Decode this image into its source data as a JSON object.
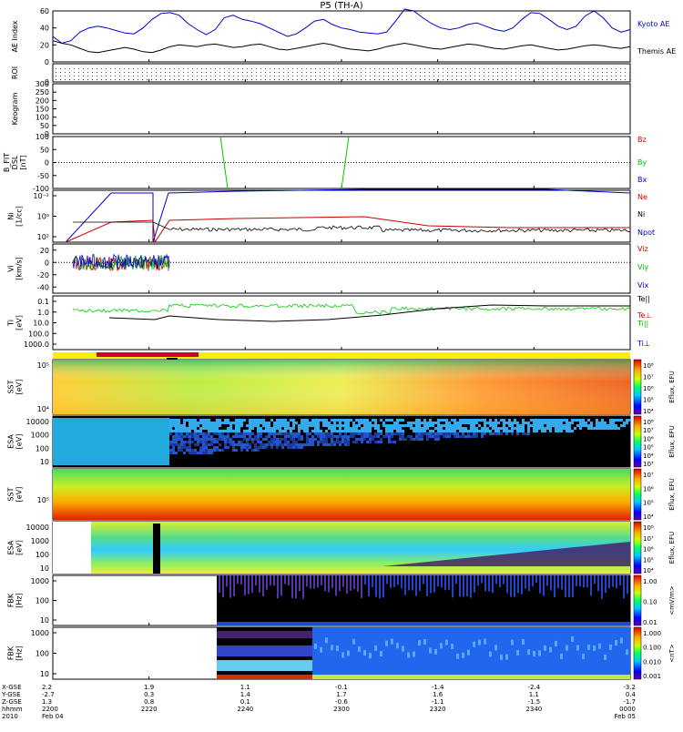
{
  "title": "P5 (TH-A)",
  "chart_data": [
    {
      "type": "line",
      "ylabel": "AE Index",
      "ylim": [
        0,
        60
      ],
      "yticks": [
        "0",
        "20",
        "40",
        "60"
      ],
      "series": [
        {
          "name": "Kyoto AE",
          "color": "#0000cc",
          "values": [
            30,
            22,
            25,
            35,
            40,
            42,
            40,
            37,
            34,
            33,
            40,
            50,
            57,
            58,
            55,
            45,
            38,
            32,
            38,
            52,
            55,
            50,
            48,
            45,
            40,
            35,
            30,
            33,
            40,
            48,
            50,
            44,
            40,
            38,
            35,
            34,
            33,
            35,
            48,
            62,
            60,
            52,
            45,
            40,
            38,
            40,
            44,
            46,
            42,
            38,
            36,
            40,
            50,
            58,
            57,
            50,
            42,
            38,
            42,
            54,
            60,
            52,
            40,
            35,
            38
          ]
        },
        {
          "name": "Themis AE",
          "color": "#000000",
          "values": [
            25,
            22,
            20,
            16,
            12,
            11,
            13,
            15,
            17,
            15,
            12,
            11,
            14,
            18,
            20,
            19,
            18,
            20,
            21,
            19,
            17,
            18,
            20,
            21,
            18,
            15,
            14,
            16,
            18,
            20,
            22,
            20,
            17,
            15,
            14,
            13,
            15,
            18,
            20,
            22,
            20,
            18,
            16,
            15,
            17,
            19,
            21,
            20,
            18,
            16,
            15,
            17,
            19,
            20,
            18,
            16,
            14,
            15,
            17,
            19,
            20,
            19,
            17,
            16,
            18
          ]
        }
      ]
    },
    {
      "type": "table",
      "ylabel": "ROI",
      "ylim": [
        0,
        10
      ],
      "yticks": [
        "0"
      ]
    },
    {
      "type": "line",
      "ylabel": "Keogram",
      "ylim": [
        0,
        300
      ],
      "yticks": [
        "0",
        "50",
        "100",
        "150",
        "200",
        "250",
        "300"
      ]
    },
    {
      "type": "line",
      "ylabel": "B_FIT\n[nT]",
      "ylabel_lines": [
        "B_FIT",
        "DSL",
        "[nT]"
      ],
      "ylim": [
        -100,
        100
      ],
      "yticks": [
        "-100",
        "-50",
        "0",
        "50",
        "100"
      ],
      "series": [
        {
          "name": "Bz",
          "color": "#cc0000",
          "values": []
        },
        {
          "name": "By",
          "color": "#00bb00",
          "values": []
        },
        {
          "name": "Bx",
          "color": "#0000cc",
          "values": []
        }
      ]
    },
    {
      "type": "line",
      "ylabel_lines": [
        "Ni",
        "[1/cc]"
      ],
      "scale": "log",
      "yticks": [
        "10⁻²",
        "10⁰",
        "10²"
      ],
      "series": [
        {
          "name": "Ne",
          "color": "#cc0000"
        },
        {
          "name": "Ni",
          "color": "#000000"
        },
        {
          "name": "Npot",
          "color": "#0000cc"
        }
      ]
    },
    {
      "type": "line",
      "ylabel_lines": [
        "Vi",
        "[km/s]"
      ],
      "ylim": [
        -50,
        30
      ],
      "yticks": [
        "-40",
        "-20",
        "0",
        "20"
      ],
      "series": [
        {
          "name": "Viz",
          "color": "#cc0000"
        },
        {
          "name": "Viy",
          "color": "#00bb00"
        },
        {
          "name": "Vix",
          "color": "#0000cc"
        }
      ]
    },
    {
      "type": "line",
      "ylabel_lines": [
        "Ti",
        "[eV]"
      ],
      "scale": "log",
      "yticks": [
        "0.1",
        "1.0",
        "10.0",
        "100.0",
        "1000.0"
      ],
      "series": [
        {
          "name": "Te||",
          "color": "#000000"
        },
        {
          "name": "Te⊥",
          "color": "#cc0000"
        },
        {
          "name": "Ti||",
          "color": "#00bb00"
        },
        {
          "name": "Ti⊥",
          "color": "#0000cc"
        }
      ]
    },
    {
      "type": "heatmap",
      "ylabel_lines": [
        "SST",
        "[eV]"
      ],
      "yticks": [
        "10⁵",
        "10⁴"
      ],
      "colorbar": [
        "10⁸",
        "10⁷",
        "10⁶",
        "10⁵",
        "10⁴"
      ],
      "cblabel": "Eflux, EFU"
    },
    {
      "type": "heatmap",
      "ylabel_lines": [
        "ESA",
        "[eV]"
      ],
      "yticks": [
        "10000",
        "1000",
        "100",
        "10"
      ],
      "colorbar": [
        "10⁸",
        "10⁷",
        "10⁶",
        "10⁵",
        "10⁴",
        "10³"
      ],
      "cblabel": "Eflux, EFU"
    },
    {
      "type": "heatmap",
      "ylabel_lines": [
        "SST",
        "[eV]"
      ],
      "yticks": [
        "10⁵"
      ],
      "colorbar": [
        "10⁷",
        "10⁶",
        "10⁵",
        "10⁴"
      ],
      "cblabel": "Eflux, EFU"
    },
    {
      "type": "heatmap",
      "ylabel_lines": [
        "ESA",
        "[eV]"
      ],
      "yticks": [
        "10000",
        "1000",
        "100",
        "10"
      ],
      "colorbar": [
        "10⁸",
        "10⁷",
        "10⁶",
        "10⁵",
        "10⁴"
      ],
      "cblabel": "Eflux, EFU"
    },
    {
      "type": "heatmap",
      "ylabel_lines": [
        "FBK",
        "[Hz]"
      ],
      "yticks": [
        "1000",
        "100",
        "10"
      ],
      "colorbar": [
        "1.00",
        "0.10",
        "0.01"
      ],
      "cblabel": "<mV/m>"
    },
    {
      "type": "heatmap",
      "ylabel_lines": [
        "FBK",
        "[Hz]"
      ],
      "yticks": [
        "1000",
        "100",
        "10"
      ],
      "colorbar": [
        "1.000",
        "0.100",
        "0.010",
        "0.001"
      ],
      "cblabel": "<nT>"
    }
  ],
  "x_axis": {
    "row_labels": [
      "X-GSE",
      "Y-GSE",
      "Z-GSE",
      "hhmm",
      "2010"
    ],
    "ticks": [
      {
        "x": "2.2",
        "y": "-2.7",
        "z": "1.3",
        "t": "2200",
        "d": "Feb 04"
      },
      {
        "x": "1.9",
        "y": "0.3",
        "z": "0.8",
        "t": "2220",
        "d": ""
      },
      {
        "x": "1.1",
        "y": "1.4",
        "z": "0.1",
        "t": "2240",
        "d": ""
      },
      {
        "x": "-0.1",
        "y": "1.7",
        "z": "-0.6",
        "t": "2300",
        "d": ""
      },
      {
        "x": "-1.4",
        "y": "1.6",
        "z": "-1.1",
        "t": "2320",
        "d": ""
      },
      {
        "x": "-2.4",
        "y": "1.1",
        "z": "-1.5",
        "t": "2340",
        "d": ""
      },
      {
        "x": "-3.2",
        "y": "0.4",
        "z": "-1.7",
        "t": "0000",
        "d": "Feb 05"
      }
    ]
  }
}
